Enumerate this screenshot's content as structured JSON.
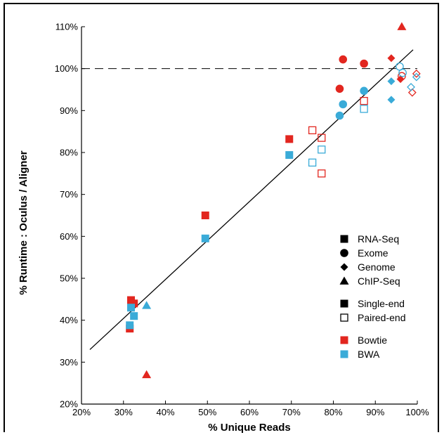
{
  "chart_data": {
    "type": "scatter",
    "title": "",
    "xlabel": "% Unique Reads",
    "ylabel": "% Runtime : Oculus / Aligner",
    "xlim": [
      20,
      100
    ],
    "ylim": [
      20,
      110
    ],
    "x_ticks": [
      "20%",
      "30%",
      "40%",
      "50%",
      "60%",
      "70%",
      "80%",
      "90%",
      "100%"
    ],
    "y_ticks": [
      "20%",
      "30%",
      "40%",
      "50%",
      "60%",
      "70%",
      "80%",
      "90%",
      "100%",
      "110%"
    ],
    "grid": false,
    "reference_line": {
      "style": "dashed",
      "y": 100
    },
    "fit_line": {
      "x": [
        22,
        99
      ],
      "y": [
        33,
        104.5
      ]
    },
    "legend": {
      "placement": "lower-right",
      "shapes": [
        {
          "label": "RNA-Seq",
          "marker": "square"
        },
        {
          "label": "Exome",
          "marker": "circle"
        },
        {
          "label": "Genome",
          "marker": "diamond"
        },
        {
          "label": "ChIP-Seq",
          "marker": "triangle"
        }
      ],
      "fills": [
        {
          "label": "Single-end",
          "fill": "filled"
        },
        {
          "label": "Paired-end",
          "fill": "open"
        }
      ],
      "colors": [
        {
          "label": "Bowtie",
          "color": "#e2261f"
        },
        {
          "label": "BWA",
          "color": "#3aabd8"
        }
      ]
    },
    "series": [
      {
        "name": "Bowtie",
        "color": "#e2261f",
        "points": [
          {
            "x": 31.5,
            "y": 38,
            "marker": "square",
            "fill": "filled"
          },
          {
            "x": 31.8,
            "y": 44.8,
            "marker": "square",
            "fill": "filled"
          },
          {
            "x": 32.5,
            "y": 44,
            "marker": "square",
            "fill": "filled"
          },
          {
            "x": 35.5,
            "y": 27,
            "marker": "triangle",
            "fill": "filled"
          },
          {
            "x": 49.5,
            "y": 65,
            "marker": "square",
            "fill": "filled"
          },
          {
            "x": 69.5,
            "y": 83.2,
            "marker": "square",
            "fill": "filled"
          },
          {
            "x": 75,
            "y": 85.3,
            "marker": "square",
            "fill": "open"
          },
          {
            "x": 77.2,
            "y": 83.5,
            "marker": "square",
            "fill": "open"
          },
          {
            "x": 77.2,
            "y": 75,
            "marker": "square",
            "fill": "open"
          },
          {
            "x": 81.5,
            "y": 95.2,
            "marker": "circle",
            "fill": "filled"
          },
          {
            "x": 82.3,
            "y": 102.2,
            "marker": "circle",
            "fill": "filled"
          },
          {
            "x": 87.3,
            "y": 101.2,
            "marker": "circle",
            "fill": "filled"
          },
          {
            "x": 87.3,
            "y": 92.3,
            "marker": "square",
            "fill": "open"
          },
          {
            "x": 93.8,
            "y": 102.5,
            "marker": "diamond",
            "fill": "filled"
          },
          {
            "x": 96,
            "y": 97.5,
            "marker": "diamond",
            "fill": "filled"
          },
          {
            "x": 96.3,
            "y": 110,
            "marker": "triangle",
            "fill": "filled"
          },
          {
            "x": 96.3,
            "y": 98.2,
            "marker": "circle",
            "fill": "open"
          },
          {
            "x": 98.8,
            "y": 94.3,
            "marker": "diamond",
            "fill": "open"
          },
          {
            "x": 99.8,
            "y": 98.8,
            "marker": "diamond",
            "fill": "open"
          }
        ]
      },
      {
        "name": "BWA",
        "color": "#3aabd8",
        "points": [
          {
            "x": 31.5,
            "y": 38.8,
            "marker": "square",
            "fill": "filled"
          },
          {
            "x": 31.8,
            "y": 43,
            "marker": "square",
            "fill": "filled"
          },
          {
            "x": 32.5,
            "y": 41,
            "marker": "square",
            "fill": "filled"
          },
          {
            "x": 35.5,
            "y": 43.5,
            "marker": "triangle",
            "fill": "filled"
          },
          {
            "x": 49.5,
            "y": 59.5,
            "marker": "square",
            "fill": "filled"
          },
          {
            "x": 69.5,
            "y": 79.4,
            "marker": "square",
            "fill": "filled"
          },
          {
            "x": 75,
            "y": 77.6,
            "marker": "square",
            "fill": "open"
          },
          {
            "x": 77.2,
            "y": 80.7,
            "marker": "square",
            "fill": "open"
          },
          {
            "x": 81.5,
            "y": 88.8,
            "marker": "circle",
            "fill": "filled"
          },
          {
            "x": 82.3,
            "y": 91.5,
            "marker": "circle",
            "fill": "filled"
          },
          {
            "x": 87.3,
            "y": 94.7,
            "marker": "circle",
            "fill": "filled"
          },
          {
            "x": 87.3,
            "y": 90.4,
            "marker": "square",
            "fill": "open"
          },
          {
            "x": 93.8,
            "y": 97,
            "marker": "diamond",
            "fill": "filled"
          },
          {
            "x": 93.8,
            "y": 92.6,
            "marker": "diamond",
            "fill": "filled"
          },
          {
            "x": 95.8,
            "y": 100.5,
            "marker": "circle",
            "fill": "open"
          },
          {
            "x": 96.5,
            "y": 99,
            "marker": "circle",
            "fill": "open"
          },
          {
            "x": 98.5,
            "y": 95.6,
            "marker": "diamond",
            "fill": "open"
          },
          {
            "x": 99.8,
            "y": 98,
            "marker": "diamond",
            "fill": "open"
          }
        ]
      }
    ]
  }
}
